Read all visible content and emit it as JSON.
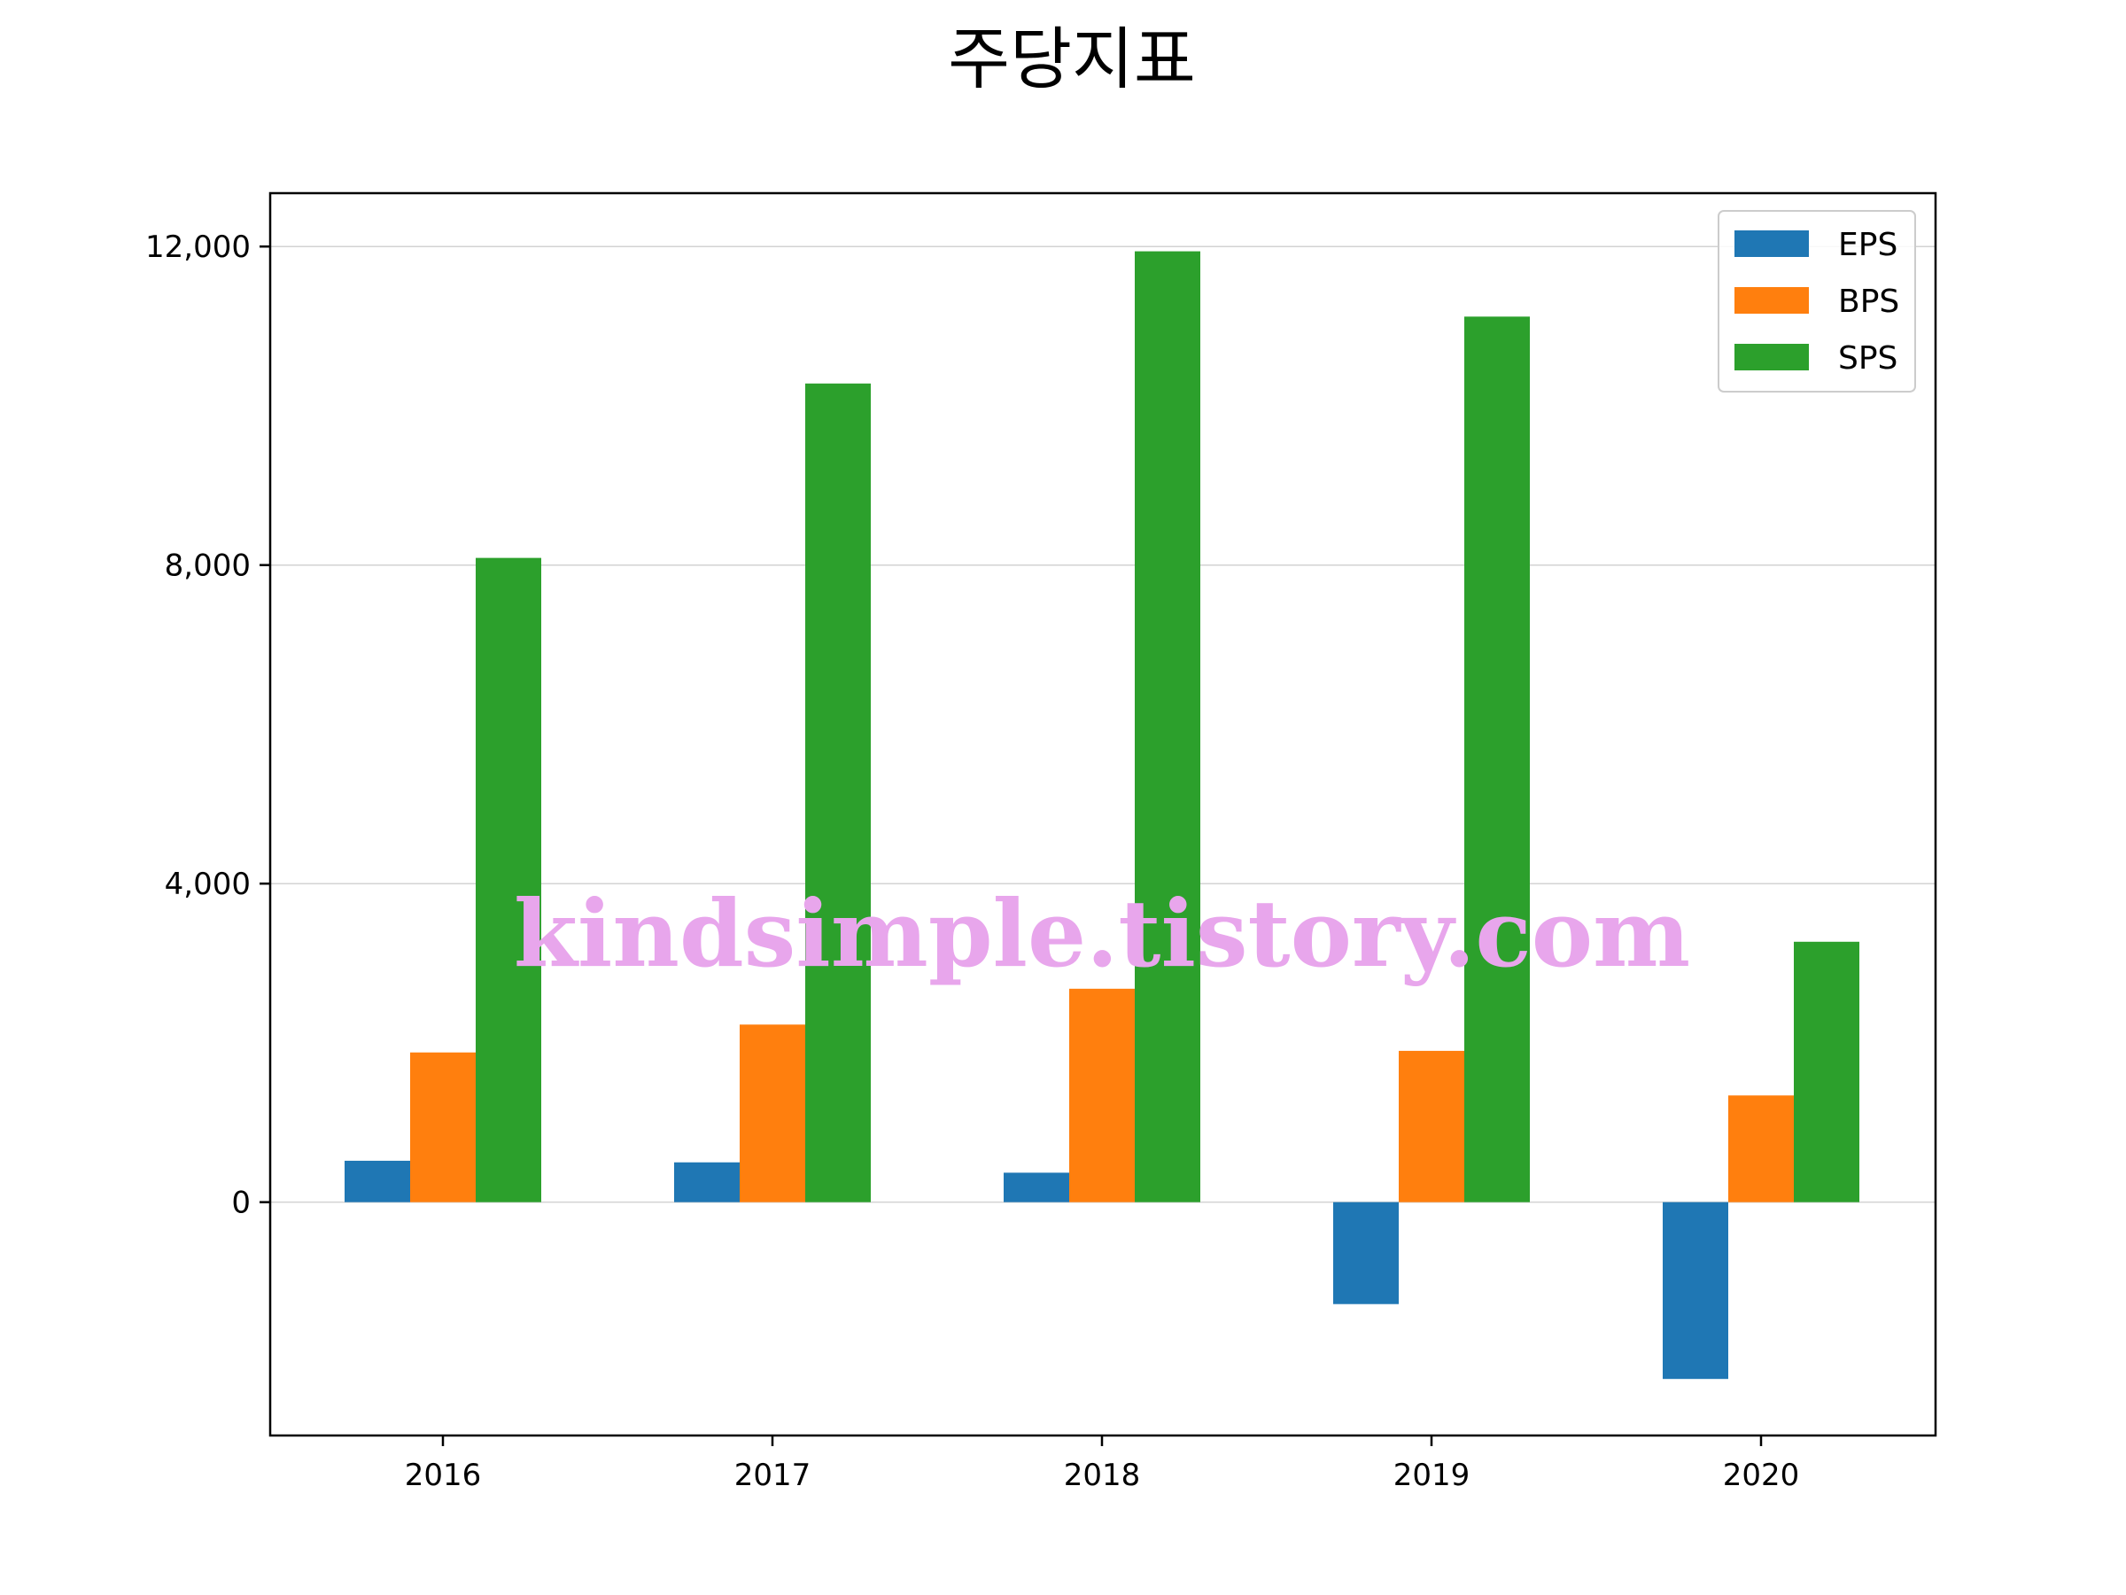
{
  "chart_data": {
    "type": "bar",
    "title": "주당지표",
    "xlabel": "",
    "ylabel": "",
    "categories": [
      "2016",
      "2017",
      "2018",
      "2019",
      "2020"
    ],
    "series": [
      {
        "name": "EPS",
        "color": "#1f77b4",
        "values": [
          520,
          500,
          370,
          -1280,
          -2220
        ]
      },
      {
        "name": "BPS",
        "color": "#ff7f0e",
        "values": [
          1880,
          2230,
          2680,
          1900,
          1340
        ]
      },
      {
        "name": "SPS",
        "color": "#2ca02c",
        "values": [
          8090,
          10280,
          11940,
          11120,
          3270
        ]
      }
    ],
    "ylim": [
      -2930,
      12670
    ],
    "yticks": [
      0,
      4000,
      8000,
      12000
    ],
    "ytick_labels": [
      "0",
      "4,000",
      "8,000",
      "12,000"
    ],
    "grid": "horizontal",
    "legend": "top-right"
  },
  "watermark": "kindsimple.tistory.com"
}
